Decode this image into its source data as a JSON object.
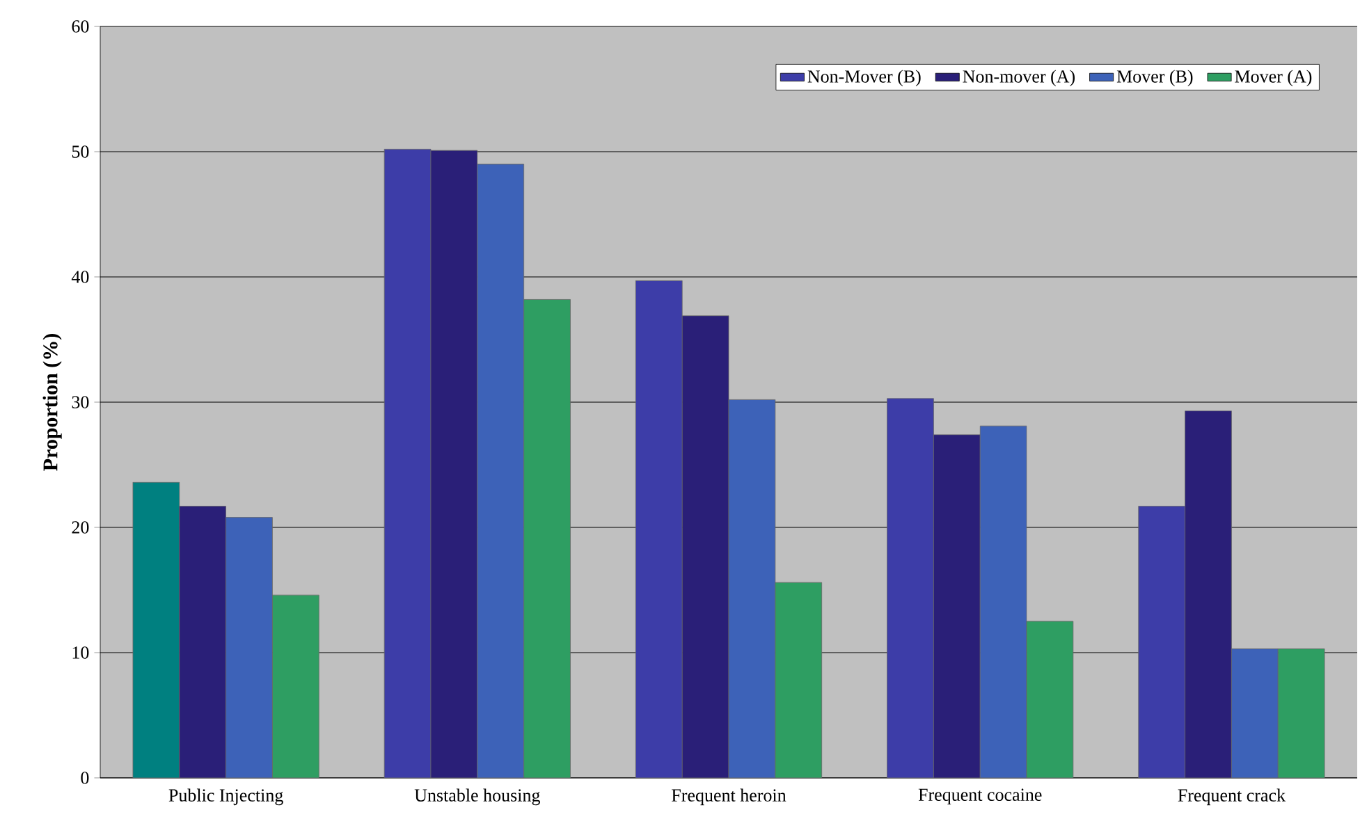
{
  "chart_data": {
    "type": "bar",
    "ylabel": "Proportion (%)",
    "categories": [
      "Public Injecting",
      "Unstable housing",
      "Frequent heroin",
      "Frequent cocaine",
      "Frequent crack"
    ],
    "series": [
      {
        "name": "Non-Mover (B)",
        "color": "#3d3da8",
        "colors": [
          "#008080",
          "#3d3da8",
          "#3d3da8",
          "#3d3da8",
          "#3d3da8"
        ],
        "values": [
          23.6,
          50.2,
          39.7,
          30.3,
          21.7
        ]
      },
      {
        "name": "Non-mover (A)",
        "color": "#2a1f78",
        "values": [
          21.7,
          50.1,
          36.9,
          27.4,
          29.3
        ]
      },
      {
        "name": "Mover (B)",
        "color": "#3d62b8",
        "values": [
          20.8,
          49.0,
          30.2,
          28.1,
          10.3
        ]
      },
      {
        "name": "Mover (A)",
        "color": "#2e9e62",
        "values": [
          14.6,
          38.2,
          15.6,
          12.5,
          10.3
        ]
      }
    ],
    "ylim": [
      0,
      60
    ],
    "yticks": [
      0,
      10,
      20,
      30,
      40,
      50,
      60
    ],
    "grid": "y",
    "legend": "top right"
  }
}
